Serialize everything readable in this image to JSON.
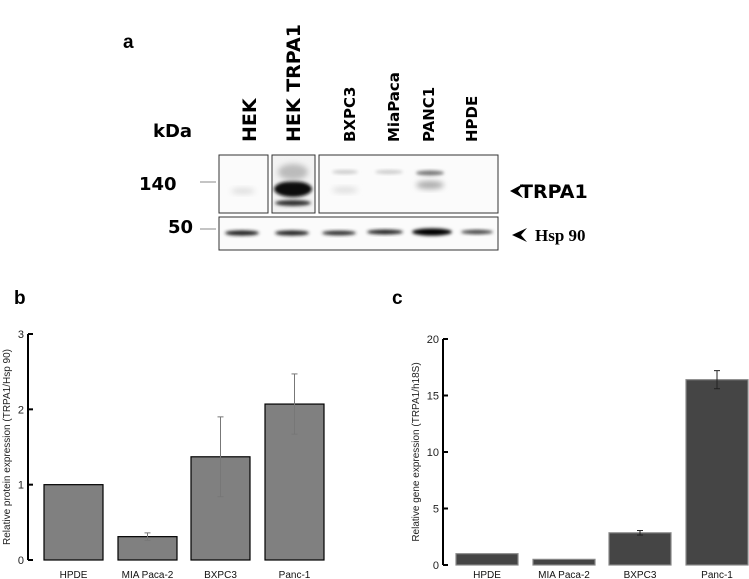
{
  "panel_a": {
    "letter": "a",
    "kda_label": "kDa",
    "lanes": [
      "HEK",
      "HEK TRPA1",
      "BXPC3",
      "MiaPaca",
      "PANC1",
      "HPDE"
    ],
    "markers": [
      "140",
      "50"
    ],
    "band_labels": [
      "TRPA1",
      "Hsp 90"
    ]
  },
  "chart_data": [
    {
      "panel": "b",
      "type": "bar",
      "title": "",
      "categories": [
        "HPDE",
        "MIA Paca-2",
        "BXPC3",
        "Panc-1"
      ],
      "values": [
        1.0,
        0.31,
        1.37,
        2.07
      ],
      "errors": [
        0,
        0.05,
        0.53,
        0.4
      ],
      "xlabel": "",
      "ylabel": "Relative protein expression (TRPA1/Hsp 90)",
      "ylim": [
        0,
        3
      ],
      "yticks": [
        "0",
        "1",
        "2",
        "3"
      ],
      "ytick_values": [
        0,
        1,
        2,
        3
      ],
      "bar_color": "#808080",
      "grid": false
    },
    {
      "panel": "c",
      "type": "bar",
      "title": "",
      "categories": [
        "HPDE",
        "MIA Paca-2",
        "BXPC3",
        "Panc-1"
      ],
      "values": [
        1.0,
        0.5,
        2.85,
        16.4
      ],
      "errors": [
        0,
        0,
        0.2,
        0.8
      ],
      "xlabel": "",
      "ylabel": "Relative gene expression (TRPA1/h18S)",
      "ylim": [
        0,
        20
      ],
      "yticks": [
        "0",
        "5",
        "10",
        "15",
        "20"
      ],
      "ytick_values": [
        0,
        5,
        10,
        15,
        20
      ],
      "bar_color": "#454545",
      "grid": false
    }
  ]
}
